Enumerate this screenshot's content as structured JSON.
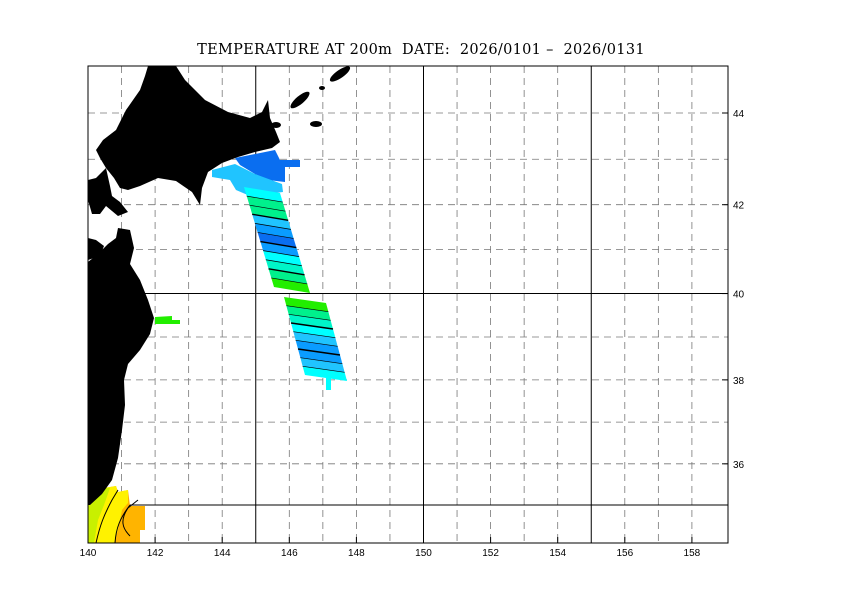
{
  "title": "TEMPERATURE AT 200m  DATE:  2026/0101 –  2026/0131",
  "map": {
    "projection": "mercator",
    "lon_range": [
      140,
      159
    ],
    "lat_range": [
      34.2,
      45
    ],
    "x_ticks": [
      "140",
      "142",
      "144",
      "146",
      "148",
      "150",
      "152",
      "154",
      "156",
      "158"
    ],
    "y_ticks": [
      "44",
      "42",
      "40",
      "38",
      "36"
    ],
    "land_color": "#000000",
    "grid": "dashed every 1 degree, solid at 145E/150E/155E and 35N/40N"
  },
  "colors": {
    "green": "#22ee00",
    "spring_green": "#00f08c",
    "aqua_green": "#00f5c8",
    "cyan": "#00ffff",
    "sky": "#20c4ff",
    "blue": "#0a9cff",
    "dark_blue": "#0a6ef0",
    "yellow_green": "#c8f000",
    "yellow": "#fff200",
    "orange": "#ffb400"
  }
}
